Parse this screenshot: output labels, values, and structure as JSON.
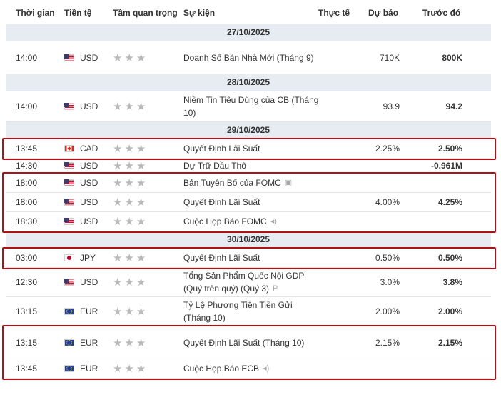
{
  "columns": {
    "time": "Thời gian",
    "currency": "Tiền tệ",
    "importance": "Tầm quan trọng",
    "event": "Sự kiện",
    "actual": "Thực tế",
    "forecast": "Dự báo",
    "previous": "Trước đó"
  },
  "groups": [
    {
      "date": "27/10/2025",
      "rows": [
        {
          "time": "14:00",
          "flag": "us",
          "currency": "USD",
          "stars": "★★★",
          "event": "Doanh Số Bán Nhà Mới (Tháng 9)",
          "event_icon": "",
          "actual": "",
          "forecast": "710K",
          "previous": "800K"
        }
      ]
    },
    {
      "date": "28/10/2025",
      "rows": [
        {
          "time": "14:00",
          "flag": "us",
          "currency": "USD",
          "stars": "★★★",
          "event": "Niềm Tin Tiêu Dùng của CB (Tháng 10)",
          "event_icon": "",
          "actual": "",
          "forecast": "93.9",
          "previous": "94.2"
        }
      ]
    },
    {
      "date": "29/10/2025",
      "rows": [
        {
          "time": "13:45",
          "flag": "ca",
          "currency": "CAD",
          "stars": "★★★",
          "event": "Quyết Định Lãi Suất",
          "event_icon": "",
          "actual": "",
          "forecast": "2.25%",
          "previous": "2.50%"
        },
        {
          "time": "14:30",
          "flag": "us",
          "currency": "USD",
          "stars": "★★★",
          "event": "Dự Trữ Dầu Thô",
          "event_icon": "",
          "actual": "",
          "forecast": "",
          "previous": "-0.961M"
        },
        {
          "time": "18:00",
          "flag": "us",
          "currency": "USD",
          "stars": "★★★",
          "event": "Bản Tuyên Bố của FOMC",
          "event_icon": "document-icon",
          "actual": "",
          "forecast": "",
          "previous": ""
        },
        {
          "time": "18:00",
          "flag": "us",
          "currency": "USD",
          "stars": "★★★",
          "event": "Quyết Định Lãi Suất",
          "event_icon": "",
          "actual": "",
          "forecast": "4.00%",
          "previous": "4.25%"
        },
        {
          "time": "18:30",
          "flag": "us",
          "currency": "USD",
          "stars": "★★★",
          "event": "Cuộc Họp Báo FOMC",
          "event_icon": "speaker-icon",
          "actual": "",
          "forecast": "",
          "previous": ""
        }
      ]
    },
    {
      "date": "30/10/2025",
      "rows": [
        {
          "time": "03:00",
          "flag": "jp",
          "currency": "JPY",
          "stars": "★★★",
          "event": "Quyết Định Lãi Suất",
          "event_icon": "",
          "actual": "",
          "forecast": "0.50%",
          "previous": "0.50%"
        },
        {
          "time": "12:30",
          "flag": "us",
          "currency": "USD",
          "stars": "★★★",
          "event": "Tổng Sản Phẩm Quốc Nội GDP (Quý trên quý) (Quý 3)",
          "event_icon": "preliminary-icon",
          "actual": "",
          "forecast": "3.0%",
          "previous": "3.8%"
        },
        {
          "time": "13:15",
          "flag": "eu",
          "currency": "EUR",
          "stars": "★★★",
          "event": "Tỷ Lệ Phương Tiện Tiền Gửi (Tháng 10)",
          "event_icon": "",
          "actual": "",
          "forecast": "2.00%",
          "previous": "2.00%"
        },
        {
          "time": "13:15",
          "flag": "eu",
          "currency": "EUR",
          "stars": "★★★",
          "event": "Quyết Định Lãi Suất (Tháng 10)",
          "event_icon": "",
          "actual": "",
          "forecast": "2.15%",
          "previous": "2.15%"
        },
        {
          "time": "13:45",
          "flag": "eu",
          "currency": "EUR",
          "stars": "★★★",
          "event": "Cuộc Họp Báo ECB",
          "event_icon": "speaker-icon",
          "actual": "",
          "forecast": "",
          "previous": ""
        }
      ]
    }
  ],
  "highlight_color": "#b01116",
  "icon_glyphs": {
    "document-icon": "▣",
    "speaker-icon": "◂)",
    "preliminary-icon": "P"
  }
}
